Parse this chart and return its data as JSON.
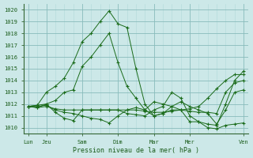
{
  "xlabel": "Pression niveau de la mer( hPa )",
  "bg_color": "#cce8e8",
  "grid_color_major": "#88bbbb",
  "grid_color_minor": "#aad4d4",
  "line_color": "#1a6b1a",
  "ylim": [
    1009.5,
    1020.5
  ],
  "xlim": [
    -0.5,
    24.5
  ],
  "yticks": [
    1010,
    1011,
    1012,
    1013,
    1014,
    1015,
    1016,
    1017,
    1018,
    1019,
    1020
  ],
  "major_xtick_pos": [
    0,
    2,
    6,
    10,
    14,
    18,
    24
  ],
  "major_xtick_labels": [
    "Lun",
    "Jeu",
    "Sam",
    "Dim",
    "Mar",
    "Mer",
    "Ven"
  ],
  "series": [
    [
      1011.8,
      1011.9,
      1013.0,
      1013.5,
      1014.2,
      1015.5,
      1017.3,
      1018.0,
      1019.0,
      1019.9,
      1018.8,
      1018.5,
      1015.0,
      1012.0,
      1011.0,
      1011.2,
      1011.5,
      1011.5,
      1011.6,
      1011.8,
      1012.5,
      1013.3,
      1014.0,
      1014.5,
      1014.5
    ],
    [
      1011.8,
      1011.9,
      1012.0,
      1012.3,
      1013.0,
      1013.2,
      1015.2,
      1016.0,
      1017.0,
      1018.0,
      1015.5,
      1013.5,
      1012.5,
      1011.5,
      1011.0,
      1011.2,
      1011.8,
      1012.2,
      1011.8,
      1011.5,
      1011.2,
      1010.3,
      1011.5,
      1013.0,
      1013.2
    ],
    [
      1011.8,
      1011.7,
      1011.8,
      1011.6,
      1011.5,
      1011.5,
      1011.5,
      1011.5,
      1011.5,
      1011.5,
      1011.5,
      1011.5,
      1011.5,
      1011.4,
      1011.3,
      1011.3,
      1011.4,
      1011.5,
      1011.4,
      1011.3,
      1011.3,
      1011.2,
      1013.0,
      1013.8,
      1014.0
    ],
    [
      1011.8,
      1011.8,
      1011.9,
      1011.5,
      1011.3,
      1011.2,
      1011.0,
      1010.8,
      1010.7,
      1010.4,
      1011.0,
      1011.5,
      1011.7,
      1011.5,
      1012.2,
      1012.0,
      1011.8,
      1011.5,
      1010.5,
      1010.5,
      1010.3,
      1010.2,
      1012.0,
      1014.0,
      1014.8
    ],
    [
      1011.8,
      1011.7,
      1012.0,
      1011.3,
      1010.8,
      1010.6,
      1011.5,
      1011.5,
      1011.5,
      1011.5,
      1011.5,
      1011.2,
      1011.1,
      1011.0,
      1011.5,
      1011.8,
      1013.0,
      1012.5,
      1011.0,
      1010.5,
      1010.0,
      1009.9,
      1010.2,
      1010.3,
      1010.4
    ]
  ]
}
